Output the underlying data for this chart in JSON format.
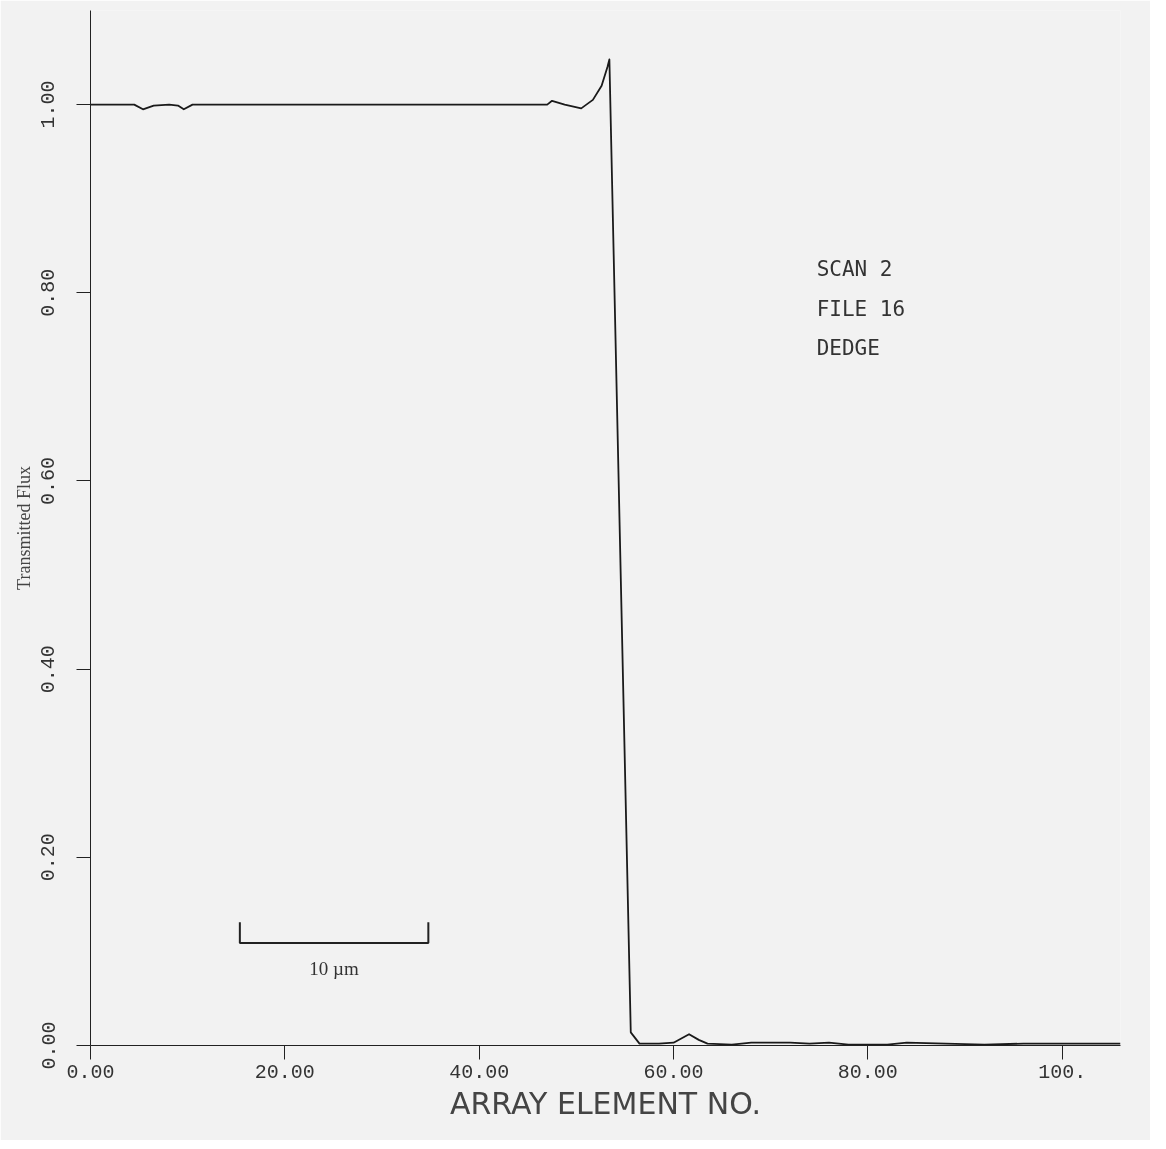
{
  "chart_data": {
    "type": "line",
    "xlabel": "ARRAY ELEMENT NO.",
    "ylabel": "Transmitted Flux",
    "annotations": [
      "SCAN 2",
      "FILE 16",
      "DEDGE",
      "10 µm"
    ],
    "x": [
      0,
      4.5,
      5.4,
      6.5,
      8.1,
      9.0,
      9.6,
      10.5,
      47.0,
      47.5,
      48.8,
      50.5,
      51.7,
      52.6,
      53.2,
      53.4,
      55.6,
      56.5,
      58.5,
      60.0,
      61.6,
      62.6,
      63.5,
      66,
      68,
      72,
      74,
      76,
      78,
      82,
      84,
      88,
      92,
      96,
      100,
      106
    ],
    "series": [
      {
        "color": "#1a1a1a",
        "values": [
          1.0,
          1.0,
          0.995,
          0.999,
          1.0,
          0.999,
          0.995,
          1.0,
          1.0,
          1.004,
          1.0,
          0.996,
          1.005,
          1.02,
          1.04,
          1.048,
          0.014,
          0.002,
          0.002,
          0.003,
          0.012,
          0.006,
          0.002,
          0.001,
          0.003,
          0.003,
          0.002,
          0.003,
          0.001,
          0.001,
          0.003,
          0.002,
          0.001,
          0.002,
          0.002,
          0.002
        ]
      }
    ],
    "xlim": [
      0,
      106
    ],
    "ylim": [
      0,
      1.1
    ],
    "xticks": [
      {
        "value": 0,
        "label": "0.00"
      },
      {
        "value": 20,
        "label": "20.00"
      },
      {
        "value": 40,
        "label": "40.00"
      },
      {
        "value": 60,
        "label": "60.00"
      },
      {
        "value": 80,
        "label": "80.00"
      },
      {
        "value": 100,
        "label": "100."
      }
    ],
    "yticks": [
      {
        "value": 0,
        "label": "0.00"
      },
      {
        "value": 0.2,
        "label": "0.20"
      },
      {
        "value": 0.4,
        "label": "0.40"
      },
      {
        "value": 0.6,
        "label": "0.60"
      },
      {
        "value": 0.8,
        "label": "0.80"
      },
      {
        "value": 1.0,
        "label": "1.00"
      }
    ],
    "grid": false,
    "marker": "none",
    "line_style": "solid"
  }
}
